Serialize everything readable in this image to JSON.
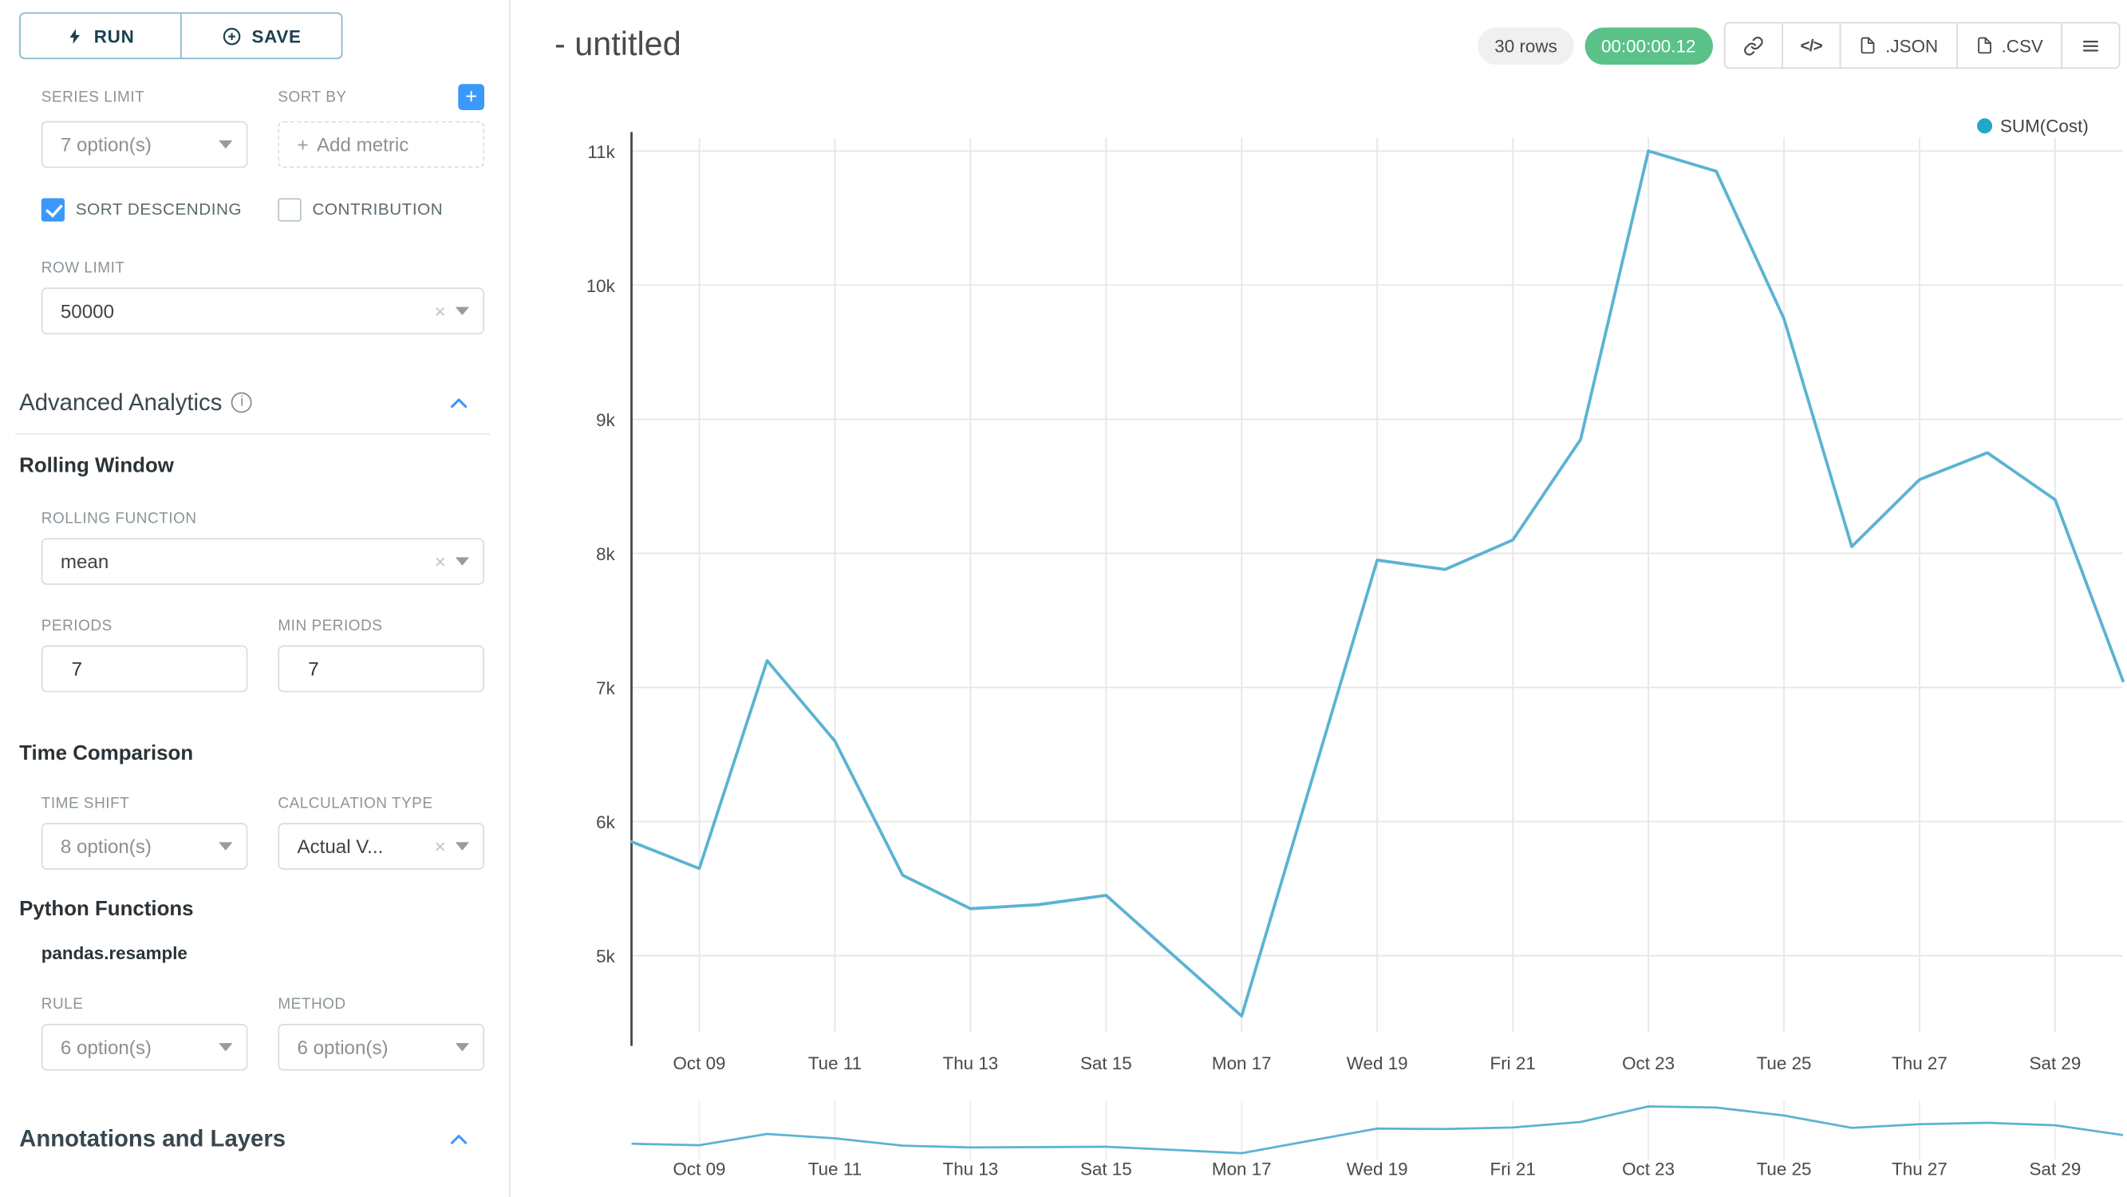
{
  "colors": {
    "accent_blue": "#3b99fc",
    "legend_dot": "#1fa8c9",
    "line": "#5bb3d2",
    "timer_green": "#5ac189"
  },
  "sidebar": {
    "run_label": "RUN",
    "save_label": "SAVE",
    "series_limit": {
      "label": "SERIES LIMIT",
      "value": "7 option(s)"
    },
    "sort_by": {
      "label": "SORT BY",
      "placeholder": "Add metric"
    },
    "sort_descending": {
      "label": "SORT DESCENDING",
      "checked": true
    },
    "contribution": {
      "label": "CONTRIBUTION",
      "checked": false
    },
    "row_limit": {
      "label": "ROW LIMIT",
      "value": "50000"
    },
    "advanced_analytics": {
      "title": "Advanced Analytics"
    },
    "rolling_window": {
      "title": "Rolling Window",
      "rolling_function": {
        "label": "ROLLING FUNCTION",
        "value": "mean"
      },
      "periods": {
        "label": "PERIODS",
        "value": "7"
      },
      "min_periods": {
        "label": "MIN PERIODS",
        "value": "7"
      }
    },
    "time_comparison": {
      "title": "Time Comparison",
      "time_shift": {
        "label": "TIME SHIFT",
        "value": "8 option(s)"
      },
      "calculation_type": {
        "label": "CALCULATION TYPE",
        "value": "Actual V..."
      }
    },
    "python_functions": {
      "title": "Python Functions",
      "subtitle": "pandas.resample",
      "rule": {
        "label": "RULE",
        "value": "6 option(s)"
      },
      "method": {
        "label": "METHOD",
        "value": "6 option(s)"
      }
    },
    "annotations": {
      "title": "Annotations and Layers"
    }
  },
  "header": {
    "title": "- untitled",
    "rows_badge": "30 rows",
    "timer_badge": "00:00:00.12",
    "json_label": ".JSON",
    "csv_label": ".CSV",
    "icons": [
      "link-icon",
      "code-icon",
      "json-file-icon",
      "csv-file-icon",
      "menu-icon"
    ]
  },
  "chart_data": {
    "type": "line",
    "legend_label": "SUM(Cost)",
    "legend_color": "#1fa8c9",
    "line_color": "#5bb3d2",
    "xlabel": "",
    "ylabel": "",
    "grid": true,
    "legend_position": "top-right",
    "has_mini_preview_chart": true,
    "x": [
      "Oct 08",
      "Oct 09",
      "Oct 10",
      "Oct 11",
      "Oct 12",
      "Oct 13",
      "Oct 14",
      "Oct 15",
      "Oct 16",
      "Oct 17",
      "Oct 18",
      "Oct 19",
      "Oct 20",
      "Oct 21",
      "Oct 22",
      "Oct 23",
      "Oct 24",
      "Oct 25",
      "Oct 26",
      "Oct 27",
      "Oct 28",
      "Oct 29",
      "Oct 30"
    ],
    "series": [
      {
        "name": "SUM(Cost)",
        "values": [
          5850,
          5650,
          7200,
          6600,
          5600,
          5350,
          5380,
          5450,
          5000,
          4550,
          6250,
          7950,
          7880,
          8100,
          8850,
          11000,
          10850,
          9750,
          8050,
          8550,
          8750,
          8400,
          7050
        ]
      }
    ],
    "ylim": [
      4430,
      11100
    ],
    "y_ticks": [
      {
        "label": "5k",
        "value": 5000
      },
      {
        "label": "6k",
        "value": 6000
      },
      {
        "label": "7k",
        "value": 7000
      },
      {
        "label": "8k",
        "value": 8000
      },
      {
        "label": "9k",
        "value": 9000
      },
      {
        "label": "10k",
        "value": 10000
      },
      {
        "label": "11k",
        "value": 11000
      }
    ],
    "x_ticks": [
      {
        "index": 1,
        "label": "Oct 09"
      },
      {
        "index": 3,
        "label": "Tue 11"
      },
      {
        "index": 5,
        "label": "Thu 13"
      },
      {
        "index": 7,
        "label": "Sat 15"
      },
      {
        "index": 9,
        "label": "Mon 17"
      },
      {
        "index": 11,
        "label": "Wed 19"
      },
      {
        "index": 13,
        "label": "Fri 21"
      },
      {
        "index": 15,
        "label": "Oct 23"
      },
      {
        "index": 17,
        "label": "Tue 25"
      },
      {
        "index": 19,
        "label": "Thu 27"
      },
      {
        "index": 21,
        "label": "Sat 29"
      }
    ]
  }
}
